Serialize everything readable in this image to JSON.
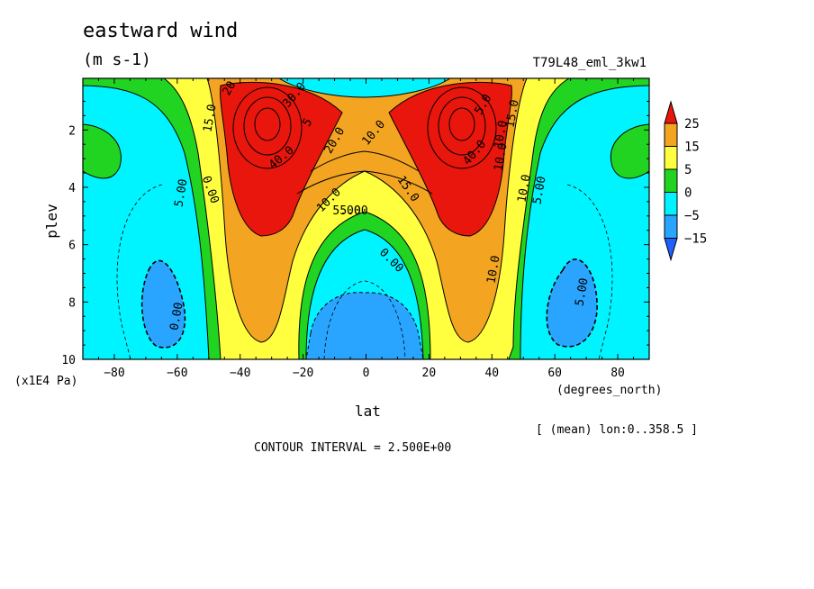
{
  "chart_data": {
    "type": "heatmap",
    "title": "eastward wind",
    "units": "(m s-1)",
    "run_label": "T79L48_eml_3kw1",
    "xlabel": "lat",
    "xunit": "(degrees_north)",
    "ylabel": "plev",
    "yunit": "(x1E4 Pa)",
    "xlim": [
      -90,
      90
    ],
    "ylim": [
      10,
      0.2
    ],
    "x_ticks": [
      -80,
      -60,
      -40,
      -20,
      0,
      20,
      40,
      60,
      80
    ],
    "y_ticks": [
      2,
      4,
      6,
      8,
      10
    ],
    "colorbar": {
      "levels": [
        25,
        15,
        5,
        0,
        -5,
        -15
      ],
      "colors": [
        "#e8160c",
        "#f3a521",
        "#ffff40",
        "#22d422",
        "#00f4ff",
        "#2aa5ff",
        "#2060ff"
      ]
    },
    "contour_labels": [
      "15.0",
      "20",
      "30.0",
      "5",
      "40.0",
      "20.0",
      "10.0",
      "15.0",
      "5.00",
      "0.00",
      "5.00",
      "10.0",
      "5.00",
      "0.00",
      "10.0",
      "5.00",
      "0.00",
      "15.0",
      "10.0",
      "5.00",
      "10.0",
      "40.0",
      "5.0",
      "10.0"
    ],
    "contour_interval": "CONTOUR INTERVAL = 2.500E+00",
    "footer": "[ (mean) lon:0..358.5 ]"
  }
}
